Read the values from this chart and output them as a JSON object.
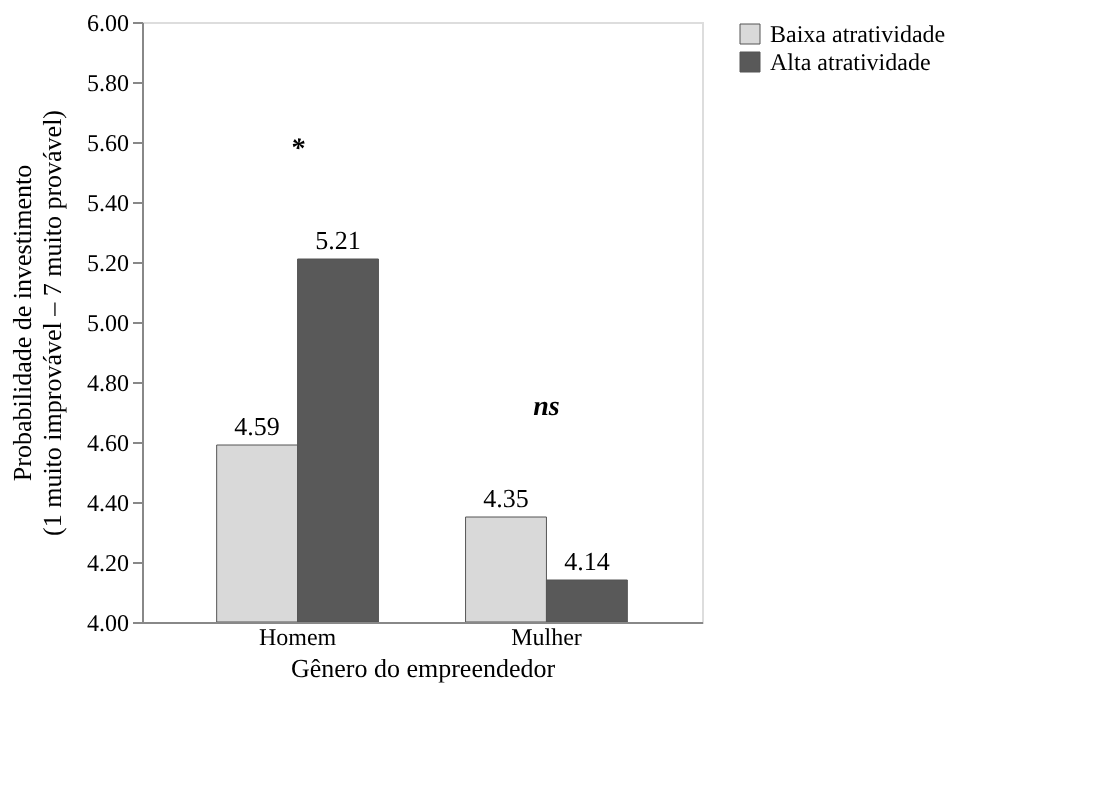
{
  "chart_data": {
    "type": "bar",
    "xlabel": "Gênero do empreendedor",
    "ylabel": "Probabilidade de investimento\n(1 muito improvável – 7 muito provável)",
    "categories": [
      "Homem",
      "Mulher"
    ],
    "series": [
      {
        "name": "Baixa atratividade",
        "color": "#d9d9d9",
        "values": [
          4.59,
          4.35
        ]
      },
      {
        "name": "Alta atratividade",
        "color": "#595959",
        "values": [
          5.21,
          4.14
        ]
      }
    ],
    "ylim": [
      4,
      6
    ],
    "yticks": [
      {
        "value": 4,
        "label": "4.00"
      },
      {
        "value": 4.2,
        "label": "4.20"
      },
      {
        "value": 4.4,
        "label": "4.40"
      },
      {
        "value": 4.6,
        "label": "4.60"
      },
      {
        "value": 4.8,
        "label": "4.80"
      },
      {
        "value": 5,
        "label": "5.00"
      },
      {
        "value": 5.2,
        "label": "5.20"
      },
      {
        "value": 5.4,
        "label": "5.40"
      },
      {
        "value": 5.6,
        "label": "5.60"
      },
      {
        "value": 5.8,
        "label": "5.80"
      },
      {
        "value": 6,
        "label": "6.00"
      }
    ],
    "data_labels": true,
    "grid": false,
    "legend": "right",
    "annotations": [
      "*",
      "ns"
    ]
  }
}
